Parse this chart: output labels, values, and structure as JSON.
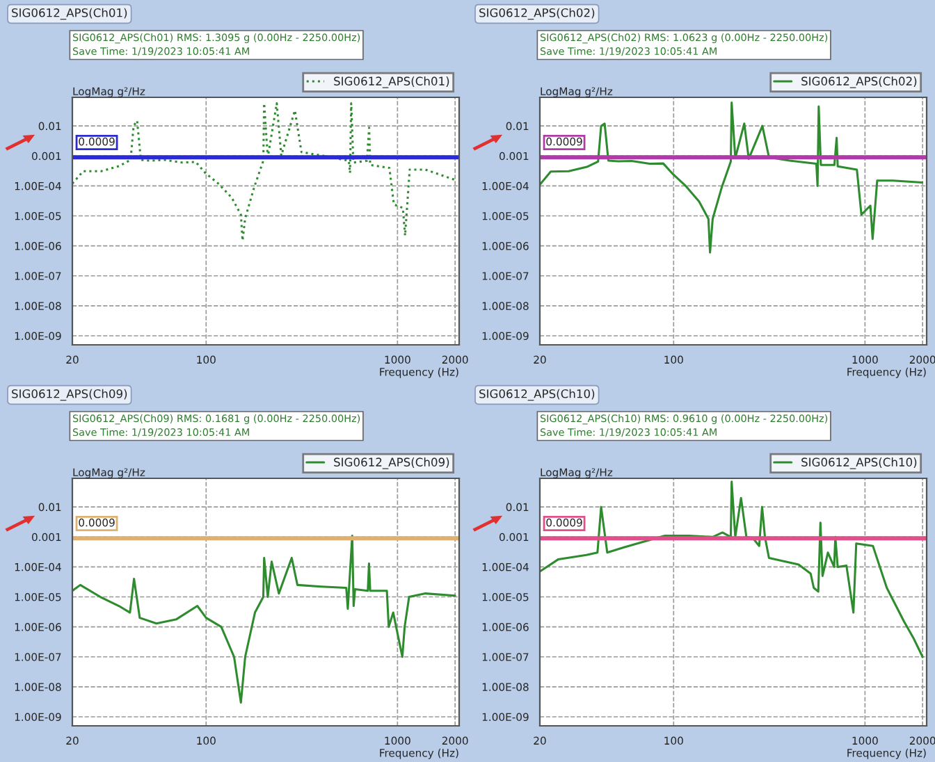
{
  "chart_data": [
    {
      "type": "line",
      "title": "SIG0612_APS(Ch01)",
      "ylabel": "LogMag g²/Hz",
      "xlabel": "Frequency (Hz)",
      "annotations": [
        "SIG0612_APS(Ch01) RMS: 1.3095 g (0.00Hz - 2250.00Hz)",
        "Save Time: 1/19/2023 10:05:41 AM"
      ],
      "log": "xy",
      "grid": true,
      "legend": "top right",
      "xlim": [
        20,
        2100
      ],
      "ylim": [
        5e-10,
        0.09
      ],
      "xticks": [
        20,
        100,
        1000,
        2000
      ],
      "yticks": [
        0.01,
        0.001,
        {
          "value": 0.0001,
          "label": "1.00E-04"
        },
        {
          "value": 1e-05,
          "label": "1.00E-05"
        },
        {
          "value": 1e-06,
          "label": "1.00E-06"
        },
        {
          "value": 1e-07,
          "label": "1.00E-07"
        },
        {
          "value": 1e-08,
          "label": "1.00E-08"
        },
        {
          "value": 1e-09,
          "label": "1.00E-09"
        }
      ],
      "ref_lines": [
        {
          "axis": "y",
          "value": 0.0009,
          "label": "0.0009",
          "color": "#2b2bd6"
        }
      ],
      "series": [
        {
          "name": "SIG0612_APS(Ch01)",
          "color": "#2e8b2e",
          "line_style": "dotted",
          "x": [
            20,
            22.8,
            28.3,
            35.2,
            40.3,
            41.8,
            43.6,
            45.6,
            51.4,
            60.4,
            75,
            88.3,
            99,
            115.7,
            136,
            152,
            155,
            160,
            178.5,
            199,
            201,
            210,
            234,
            247,
            291,
            315,
            403,
            557,
            565,
            573,
            588,
            692,
            711,
            720,
            907,
            958,
            1067,
            1096,
            1158,
            1400,
            1990
          ],
          "values": [
            0.00012,
            0.00031,
            0.00031,
            0.00046,
            0.00074,
            0.01,
            0.015,
            0.00074,
            0.00069,
            0.00074,
            0.0006,
            0.00063,
            0.00027,
            0.00012,
            4.1e-05,
            1.1e-05,
            1.5e-06,
            8.3e-06,
            9.2e-05,
            0.00069,
            0.057,
            0.0009,
            0.057,
            0.00103,
            0.033,
            0.00134,
            0.00103,
            0.00069,
            0.00027,
            0.057,
            0.0006,
            0.00069,
            0.0087,
            0.0005,
            0.0004,
            2.4e-05,
            1.85e-05,
            2.2e-06,
            0.00035,
            0.00035,
            0.00016
          ]
        }
      ]
    },
    {
      "type": "line",
      "title": "SIG0612_APS(Ch02)",
      "ylabel": "LogMag g²/Hz",
      "xlabel": "Frequency (Hz)",
      "annotations": [
        "SIG0612_APS(Ch02) RMS: 1.0623 g (0.00Hz - 2250.00Hz)",
        "Save Time: 1/19/2023 10:05:41 AM"
      ],
      "log": "xy",
      "grid": true,
      "legend": "top right",
      "xlim": [
        20,
        2100
      ],
      "ylim": [
        5e-10,
        0.09
      ],
      "xticks": [
        20,
        100,
        1000,
        2000
      ],
      "yticks": [
        0.01,
        0.001,
        {
          "value": 0.0001,
          "label": "1.00E-04"
        },
        {
          "value": 1e-05,
          "label": "1.00E-05"
        },
        {
          "value": 1e-06,
          "label": "1.00E-06"
        },
        {
          "value": 1e-07,
          "label": "1.00E-07"
        },
        {
          "value": 1e-08,
          "label": "1.00E-08"
        },
        {
          "value": 1e-09,
          "label": "1.00E-09"
        }
      ],
      "ref_lines": [
        {
          "axis": "y",
          "value": 0.0009,
          "label": "0.0009",
          "color": "#b03aa8"
        }
      ],
      "series": [
        {
          "name": "SIG0612_APS(Ch02)",
          "color": "#2e8b2e",
          "line_style": "solid",
          "x": [
            20,
            22.8,
            28.3,
            35.2,
            40.3,
            41.8,
            43.6,
            45.6,
            51.4,
            60.4,
            75,
            88.3,
            99,
            115.7,
            136,
            152,
            155,
            160,
            178.5,
            199,
            201,
            210,
            234,
            247,
            291,
            315,
            403,
            557,
            565,
            573,
            588,
            692,
            711,
            720,
            907,
            958,
            1067,
            1096,
            1158,
            1400,
            1990
          ],
          "values": [
            0.00011,
            0.0003,
            0.00031,
            0.00043,
            0.00065,
            0.01,
            0.012,
            0.0007,
            0.00066,
            0.00068,
            0.00055,
            0.00056,
            0.00025,
            0.0001,
            3e-05,
            8e-06,
            6e-07,
            8e-06,
            9e-05,
            0.00065,
            0.06,
            0.00085,
            0.012,
            0.0008,
            0.01,
            0.0009,
            0.0007,
            0.00055,
            0.0001,
            0.045,
            0.0005,
            0.0005,
            0.004,
            0.00045,
            0.00035,
            1.1e-05,
            2.2e-05,
            1.7e-06,
            0.00015,
            0.00015,
            0.00013
          ]
        }
      ]
    },
    {
      "type": "line",
      "title": "SIG0612_APS(Ch09)",
      "ylabel": "LogMag g²/Hz",
      "xlabel": "Frequency (Hz)",
      "annotations": [
        "SIG0612_APS(Ch09) RMS: 0.1681 g (0.00Hz - 2250.00Hz)",
        "Save Time: 1/19/2023 10:05:41 AM"
      ],
      "log": "xy",
      "grid": true,
      "legend": "top right",
      "xlim": [
        20,
        2100
      ],
      "ylim": [
        5e-10,
        0.09
      ],
      "xticks": [
        20,
        100,
        1000,
        2000
      ],
      "yticks": [
        0.01,
        0.001,
        {
          "value": 0.0001,
          "label": "1.00E-04"
        },
        {
          "value": 1e-05,
          "label": "1.00E-05"
        },
        {
          "value": 1e-06,
          "label": "1.00E-06"
        },
        {
          "value": 1e-07,
          "label": "1.00E-07"
        },
        {
          "value": 1e-08,
          "label": "1.00E-08"
        },
        {
          "value": 1e-09,
          "label": "1.00E-09"
        }
      ],
      "ref_lines": [
        {
          "axis": "y",
          "value": 0.0009,
          "label": "0.0009",
          "color": "#e0b070"
        }
      ],
      "series": [
        {
          "name": "SIG0612_APS(Ch09)",
          "color": "#2e8b2e",
          "line_style": "solid",
          "x": [
            20,
            22,
            28,
            35,
            40,
            42,
            45,
            55,
            70,
            90,
            100,
            120,
            140,
            152,
            160,
            180,
            199,
            201,
            210,
            220,
            240,
            280,
            300,
            400,
            540,
            550,
            580,
            590,
            600,
            700,
            710,
            720,
            880,
            900,
            950,
            1060,
            1090,
            1150,
            1400,
            2000
          ],
          "values": [
            1.6e-05,
            2.5e-05,
            1e-05,
            5e-06,
            3e-06,
            4e-05,
            2e-06,
            1.3e-06,
            1.8e-06,
            5e-06,
            2e-06,
            1e-06,
            1e-07,
            3e-09,
            1e-07,
            3e-06,
            1e-05,
            0.0002,
            1e-05,
            0.00015,
            1.3e-05,
            0.0002,
            2.5e-05,
            2.2e-05,
            2e-05,
            4e-06,
            0.0011,
            5e-06,
            1.8e-05,
            1.6e-05,
            0.00013,
            1.6e-05,
            1.6e-05,
            1e-06,
            3e-06,
            1e-07,
            1e-06,
            1e-05,
            1.3e-05,
            1.1e-05
          ]
        }
      ]
    },
    {
      "type": "line",
      "title": "SIG0612_APS(Ch10)",
      "ylabel": "LogMag g²/Hz",
      "xlabel": "Frequency (Hz)",
      "annotations": [
        "SIG0612_APS(Ch10) RMS: 0.9610 g (0.00Hz - 2250.00Hz)",
        "Save Time: 1/19/2023 10:05:41 AM"
      ],
      "log": "xy",
      "grid": true,
      "legend": "top right",
      "xlim": [
        20,
        2100
      ],
      "ylim": [
        5e-10,
        0.09
      ],
      "xticks": [
        20,
        100,
        1000,
        2000
      ],
      "yticks": [
        0.01,
        0.001,
        {
          "value": 0.0001,
          "label": "1.00E-04"
        },
        {
          "value": 1e-05,
          "label": "1.00E-05"
        },
        {
          "value": 1e-06,
          "label": "1.00E-06"
        },
        {
          "value": 1e-07,
          "label": "1.00E-07"
        },
        {
          "value": 1e-08,
          "label": "1.00E-08"
        },
        {
          "value": 1e-09,
          "label": "1.00E-09"
        }
      ],
      "ref_lines": [
        {
          "axis": "y",
          "value": 0.0009,
          "label": "0.0009",
          "color": "#e0508a"
        }
      ],
      "series": [
        {
          "name": "SIG0612_APS(Ch10)",
          "color": "#2e8b2e",
          "line_style": "solid",
          "x": [
            20,
            25,
            35,
            40,
            41.8,
            45,
            55,
            70,
            90,
            120,
            160,
            180,
            199,
            201,
            210,
            225,
            240,
            260,
            280,
            290,
            300,
            315,
            450,
            520,
            540,
            570,
            585,
            600,
            640,
            690,
            700,
            720,
            800,
            870,
            900,
            1100,
            1300,
            1600,
            1800,
            2000
          ],
          "values": [
            7e-05,
            0.00018,
            0.00025,
            0.0003,
            0.01,
            0.0003,
            0.00045,
            0.0007,
            0.0011,
            0.0011,
            0.001,
            0.0014,
            0.001,
            0.07,
            0.001,
            0.02,
            0.001,
            0.0009,
            0.0005,
            0.01,
            0.001,
            0.0002,
            0.00012,
            6e-05,
            2e-05,
            1.5e-05,
            0.003,
            5e-05,
            0.0003,
            0.0001,
            0.001,
            0.0001,
            0.00011,
            3e-06,
            0.0006,
            0.0005,
            2e-05,
            1.5e-06,
            4e-07,
            1e-07
          ]
        }
      ]
    }
  ]
}
